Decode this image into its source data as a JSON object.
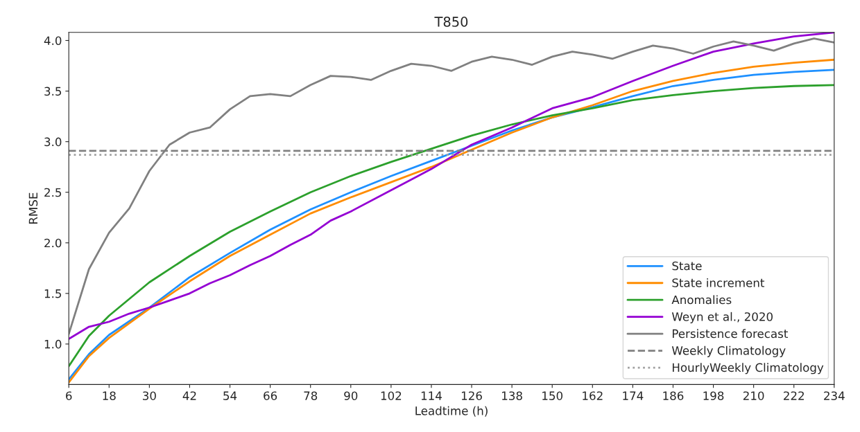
{
  "chart_data": {
    "type": "line",
    "title": "T850",
    "xlabel": "Leadtime (h)",
    "ylabel": "RMSE",
    "xlim": [
      6,
      234
    ],
    "xticks": [
      6,
      18,
      30,
      42,
      54,
      66,
      78,
      90,
      102,
      114,
      126,
      138,
      150,
      162,
      174,
      186,
      198,
      210,
      222,
      234
    ],
    "ylim": [
      0.6,
      4.08
    ],
    "yticks": [
      {
        "value": 1,
        "label": "1.0"
      },
      1.5,
      {
        "value": 2,
        "label": "2.0"
      },
      2.5,
      {
        "value": 3,
        "label": "3.0"
      },
      3.5,
      {
        "value": 4,
        "label": "4.0"
      }
    ],
    "grid": false,
    "legend": "bottom right",
    "line_style": "solid",
    "series": [
      {
        "name": "State",
        "color": "#1e90ff",
        "x": [
          6,
          12,
          18,
          30,
          42,
          54,
          66,
          78,
          90,
          102,
          114,
          126,
          138,
          150,
          162,
          174,
          186,
          198,
          210,
          222,
          234
        ],
        "values": [
          0.65,
          0.9,
          1.09,
          1.36,
          1.66,
          1.9,
          2.13,
          2.33,
          2.5,
          2.66,
          2.81,
          2.96,
          3.11,
          3.24,
          3.34,
          3.45,
          3.55,
          3.61,
          3.66,
          3.69,
          3.71
        ]
      },
      {
        "name": "State increment",
        "color": "#ff8c00",
        "x": [
          6,
          12,
          18,
          30,
          42,
          54,
          66,
          78,
          90,
          102,
          114,
          126,
          138,
          150,
          162,
          174,
          186,
          198,
          210,
          222,
          234
        ],
        "values": [
          0.62,
          0.88,
          1.06,
          1.35,
          1.62,
          1.87,
          2.08,
          2.29,
          2.45,
          2.6,
          2.75,
          2.92,
          3.09,
          3.24,
          3.36,
          3.5,
          3.6,
          3.68,
          3.74,
          3.78,
          3.81
        ]
      },
      {
        "name": "Anomalies",
        "color": "#2ca02c",
        "x": [
          6,
          12,
          18,
          30,
          42,
          54,
          66,
          78,
          90,
          102,
          114,
          126,
          138,
          150,
          162,
          174,
          186,
          198,
          210,
          222,
          234
        ],
        "values": [
          0.78,
          1.08,
          1.28,
          1.61,
          1.87,
          2.11,
          2.31,
          2.5,
          2.66,
          2.8,
          2.93,
          3.06,
          3.17,
          3.26,
          3.33,
          3.41,
          3.46,
          3.5,
          3.53,
          3.55,
          3.56
        ]
      },
      {
        "name": "Weyn et al., 2020",
        "color": "#9400d3",
        "x": [
          6,
          12,
          18,
          24,
          30,
          36,
          42,
          48,
          54,
          60,
          66,
          72,
          78,
          84,
          90,
          102,
          114,
          126,
          138,
          150,
          162,
          174,
          186,
          198,
          210,
          222,
          234
        ],
        "values": [
          1.05,
          1.17,
          1.22,
          1.3,
          1.36,
          1.43,
          1.5,
          1.6,
          1.68,
          1.78,
          1.87,
          1.98,
          2.08,
          2.22,
          2.31,
          2.52,
          2.73,
          2.97,
          3.14,
          3.33,
          3.44,
          3.6,
          3.75,
          3.89,
          3.97,
          4.04,
          4.08
        ]
      },
      {
        "name": "Persistence forecast",
        "color": "#808080",
        "x": [
          6,
          12,
          18,
          24,
          30,
          36,
          42,
          48,
          54,
          60,
          66,
          72,
          78,
          84,
          90,
          96,
          102,
          108,
          114,
          120,
          126,
          132,
          138,
          144,
          150,
          156,
          162,
          168,
          174,
          180,
          186,
          192,
          198,
          204,
          210,
          216,
          222,
          228,
          234
        ],
        "values": [
          1.1,
          1.74,
          2.1,
          2.34,
          2.71,
          2.97,
          3.09,
          3.14,
          3.32,
          3.45,
          3.47,
          3.45,
          3.56,
          3.65,
          3.64,
          3.61,
          3.7,
          3.77,
          3.75,
          3.7,
          3.79,
          3.84,
          3.81,
          3.76,
          3.84,
          3.89,
          3.86,
          3.82,
          3.89,
          3.95,
          3.92,
          3.87,
          3.94,
          3.99,
          3.95,
          3.9,
          3.97,
          4.02,
          3.98
        ]
      }
    ],
    "ref_lines": [
      {
        "axis": "y",
        "value": 2.91,
        "label": "Weekly Climatology",
        "color": "#808080",
        "line_style": "dashed"
      },
      {
        "axis": "y",
        "value": 2.87,
        "label": "HourlyWeekly Climatology",
        "color": "#a0a0a0",
        "line_style": "dotted"
      }
    ]
  }
}
